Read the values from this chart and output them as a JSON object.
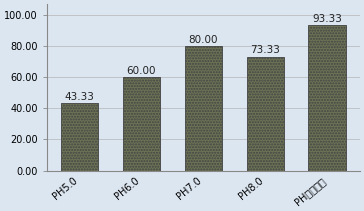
{
  "categories": [
    "PH5.0",
    "PH6.0",
    "PH7.0",
    "PH8.0",
    "PH梯度包被"
  ],
  "values": [
    43.33,
    60.0,
    80.0,
    73.33,
    93.33
  ],
  "bar_color": "#6b7355",
  "bar_edge_color": "#444444",
  "bar_width": 0.6,
  "ylim": [
    0,
    107
  ],
  "yticks": [
    0,
    20,
    40,
    60,
    80,
    100
  ],
  "ytick_labels": [
    "0.00",
    "20.00",
    "40.00",
    "60.00",
    "80.00",
    "100.00"
  ],
  "value_label_fontsize": 7.5,
  "tick_label_fontsize": 7,
  "background_color": "#dce6f1",
  "plot_bg_color": "#dce6f1",
  "annotation_color": "#222222",
  "spine_color": "#888888"
}
